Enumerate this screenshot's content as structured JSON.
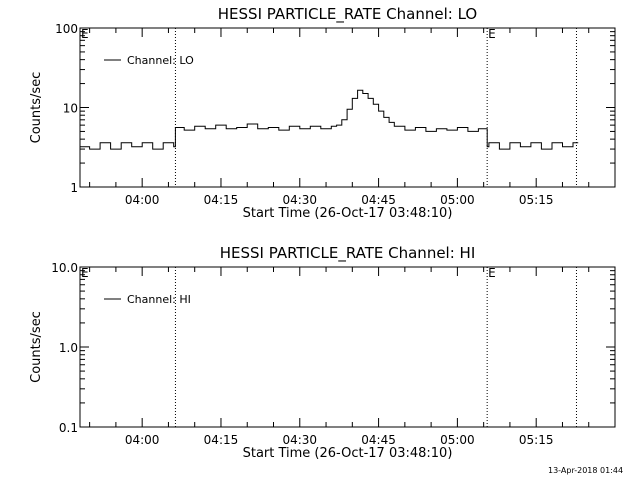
{
  "footer": {
    "timestamp": "13-Apr-2018 01:44"
  },
  "chart_data": [
    {
      "type": "line",
      "title": "HESSI PARTICLE_RATE Channel: LO",
      "xlabel": "Start Time (26-Oct-17 03:48:10)",
      "ylabel": "Counts/sec",
      "yscale": "log",
      "ylim": [
        1,
        100
      ],
      "y_ticks": [
        1,
        10,
        100
      ],
      "y_tick_labels": [
        "1",
        "10",
        "100"
      ],
      "xlim": [
        "03:48:10",
        "05:30:00"
      ],
      "x_ticks": [
        "04:00",
        "04:15",
        "04:30",
        "04:45",
        "05:00",
        "05:15"
      ],
      "legend": {
        "entries": [
          "Channel: LO"
        ],
        "position": "top-left"
      },
      "markers": [
        {
          "time": "04:06:20",
          "label": ""
        },
        {
          "time": "05:05:40",
          "label": "E"
        },
        {
          "time": "05:22:40",
          "label": ""
        }
      ],
      "corner_label": "E",
      "series": [
        {
          "name": "Channel: LO",
          "x": [
            "03:48:10",
            "03:50:00",
            "03:52:00",
            "03:54:00",
            "03:56:00",
            "03:58:00",
            "04:00:00",
            "04:02:00",
            "04:04:00",
            "04:06:00",
            "04:06:20",
            "04:08:00",
            "04:10:00",
            "04:12:00",
            "04:14:00",
            "04:16:00",
            "04:18:00",
            "04:20:00",
            "04:22:00",
            "04:24:00",
            "04:26:00",
            "04:28:00",
            "04:30:00",
            "04:32:00",
            "04:34:00",
            "04:36:00",
            "04:37:00",
            "04:38:00",
            "04:39:00",
            "04:40:00",
            "04:41:00",
            "04:42:00",
            "04:43:00",
            "04:44:00",
            "04:45:00",
            "04:46:00",
            "04:47:00",
            "04:48:00",
            "04:50:00",
            "04:52:00",
            "04:54:00",
            "04:56:00",
            "04:58:00",
            "05:00:00",
            "05:02:00",
            "05:04:00",
            "05:05:40",
            "05:06:00",
            "05:08:00",
            "05:10:00",
            "05:12:00",
            "05:14:00",
            "05:16:00",
            "05:18:00",
            "05:20:00",
            "05:22:00",
            "05:23:00"
          ],
          "y": [
            3.2,
            3.0,
            3.6,
            3.0,
            3.6,
            3.2,
            3.6,
            3.0,
            3.6,
            3.2,
            5.6,
            5.2,
            5.8,
            5.4,
            6.0,
            5.4,
            5.6,
            6.2,
            5.4,
            5.6,
            5.2,
            5.8,
            5.4,
            5.8,
            5.4,
            5.8,
            6.0,
            7.0,
            9.5,
            13.0,
            16.5,
            15.0,
            13.0,
            11.0,
            9.0,
            7.5,
            6.5,
            5.8,
            5.2,
            5.6,
            5.0,
            5.4,
            5.2,
            5.6,
            5.0,
            5.4,
            3.2,
            3.6,
            3.0,
            3.6,
            3.2,
            3.6,
            3.0,
            3.6,
            3.2,
            3.6,
            3.6
          ]
        }
      ]
    },
    {
      "type": "line",
      "title": "HESSI PARTICLE_RATE Channel: HI",
      "xlabel": "Start Time (26-Oct-17 03:48:10)",
      "ylabel": "Counts/sec",
      "yscale": "log",
      "ylim": [
        0.1,
        10
      ],
      "y_ticks": [
        0.1,
        1,
        10
      ],
      "y_tick_labels": [
        "0.1",
        "1.0",
        "10.0"
      ],
      "xlim": [
        "03:48:10",
        "05:30:00"
      ],
      "x_ticks": [
        "04:00",
        "04:15",
        "04:30",
        "04:45",
        "05:00",
        "05:15"
      ],
      "legend": {
        "entries": [
          "Channel: HI"
        ],
        "position": "top-left"
      },
      "markers": [
        {
          "time": "04:06:20",
          "label": ""
        },
        {
          "time": "05:05:40",
          "label": "E"
        },
        {
          "time": "05:22:40",
          "label": ""
        }
      ],
      "corner_label": "E",
      "series": [
        {
          "name": "Channel: HI",
          "x": [],
          "y": []
        }
      ]
    }
  ]
}
